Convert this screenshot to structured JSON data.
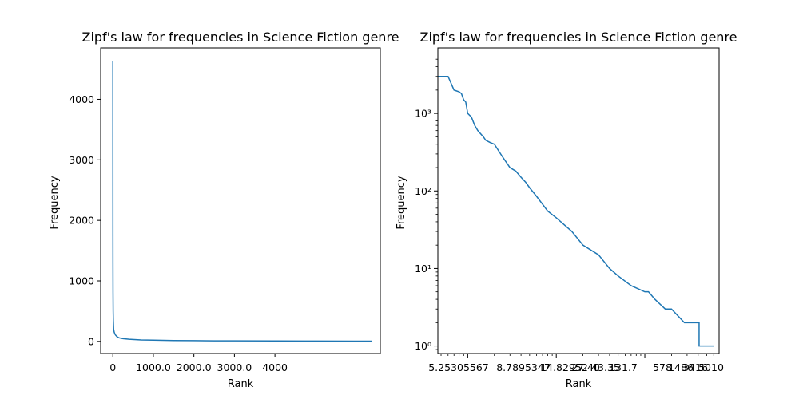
{
  "chart_data": [
    {
      "type": "line",
      "title": "Zipf's law for frequencies in Science Fiction genre",
      "xlabel": "Rank",
      "ylabel": "Frequency",
      "xscale": "linear",
      "yscale": "linear",
      "xlim": [
        -300,
        6600
      ],
      "ylim": [
        -200,
        4850
      ],
      "grid": false,
      "x_tick_labels": [
        "0",
        "1000.0",
        "2000.0",
        "3000.0",
        "4000"
      ],
      "y_tick_labels": [
        "0",
        "1000",
        "2000",
        "3000",
        "4000"
      ],
      "color": "#1f77b4",
      "series": [
        {
          "x": [
            0,
            1,
            2,
            3,
            5,
            8,
            12,
            20,
            35,
            60,
            100,
            150,
            250,
            400,
            700,
            1000,
            1500,
            2000,
            2500,
            3000,
            4000,
            5000,
            6000,
            6400
          ],
          "y": [
            4630,
            3000,
            1800,
            1300,
            800,
            500,
            350,
            200,
            150,
            110,
            80,
            60,
            45,
            35,
            25,
            20,
            15,
            12,
            10,
            9,
            7,
            6,
            5,
            5
          ]
        }
      ]
    },
    {
      "type": "line",
      "title": "Zipf's law for frequencies in Science Fiction genre",
      "xlabel": "Rank",
      "ylabel": "Frequency",
      "xscale": "log",
      "yscale": "log",
      "xlim": [
        4.6,
        6900
      ],
      "ylim": [
        0.8,
        7000
      ],
      "grid": false,
      "x_tick_labels": [
        "5.25305567",
        "8.7895347",
        "14.82952",
        "27.40",
        "43.35",
        "131.7",
        "578",
        "1486",
        "3416",
        "5010"
      ],
      "y_tick_labels": [
        "10⁰",
        "10¹",
        "10²",
        "10³"
      ],
      "color": "#1f77b4",
      "series": [
        {
          "x": [
            4.6,
            6,
            7,
            8,
            8.5,
            9,
            9.5,
            10,
            11,
            12,
            13,
            15,
            16,
            18,
            20,
            25,
            30,
            35,
            40,
            45,
            50,
            60,
            80,
            100,
            150,
            200,
            300,
            400,
            500,
            700,
            1000,
            1100,
            1300,
            1700,
            2000,
            2800,
            3200,
            3300,
            4100,
            4100,
            6000
          ],
          "y": [
            3000,
            3000,
            2000,
            1900,
            1800,
            1500,
            1400,
            1000,
            900,
            700,
            600,
            500,
            450,
            420,
            400,
            270,
            200,
            180,
            150,
            130,
            110,
            85,
            55,
            45,
            30,
            20,
            15,
            10,
            8,
            6,
            5,
            5,
            4,
            3,
            3,
            2,
            2,
            2,
            2,
            1,
            1
          ]
        }
      ]
    }
  ]
}
